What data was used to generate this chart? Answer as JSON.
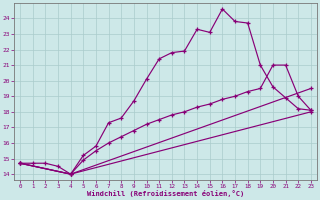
{
  "background_color": "#cde8e8",
  "line_color": "#880077",
  "grid_color": "#aacccc",
  "xlabel": "Windchill (Refroidissement éolien,°C)",
  "xlim": [
    -0.5,
    23.5
  ],
  "ylim": [
    13.6,
    25.0
  ],
  "ytick_vals": [
    14,
    15,
    16,
    17,
    18,
    19,
    20,
    21,
    22,
    23,
    24
  ],
  "xtick_vals": [
    0,
    1,
    2,
    3,
    4,
    5,
    6,
    7,
    8,
    9,
    10,
    11,
    12,
    13,
    14,
    15,
    16,
    17,
    18,
    19,
    20,
    21,
    22,
    23
  ],
  "line1_x": [
    0,
    1,
    2,
    3,
    4,
    5,
    6,
    7,
    8,
    9,
    10,
    11,
    12,
    13,
    14,
    15,
    16,
    17,
    18,
    19,
    20,
    21,
    22,
    23
  ],
  "line1_y": [
    14.7,
    14.7,
    14.7,
    14.5,
    14.0,
    15.2,
    15.8,
    17.3,
    17.6,
    18.7,
    20.1,
    21.4,
    21.8,
    21.9,
    23.3,
    23.1,
    24.6,
    23.8,
    23.7,
    21.0,
    19.6,
    18.9,
    18.2,
    18.1
  ],
  "line2_x": [
    0,
    4,
    5,
    6,
    7,
    8,
    9,
    10,
    11,
    12,
    13,
    14,
    15,
    16,
    17,
    18,
    19,
    20,
    21,
    22,
    23
  ],
  "line2_y": [
    14.7,
    14.0,
    14.9,
    15.5,
    16.0,
    16.4,
    16.8,
    17.2,
    17.5,
    17.8,
    18.0,
    18.3,
    18.5,
    18.8,
    19.0,
    19.3,
    19.5,
    21.0,
    21.0,
    19.0,
    18.1
  ],
  "line3_x": [
    0,
    4,
    23
  ],
  "line3_y": [
    14.7,
    14.0,
    19.5
  ],
  "line4_x": [
    0,
    4,
    23
  ],
  "line4_y": [
    14.7,
    14.0,
    18.0
  ]
}
